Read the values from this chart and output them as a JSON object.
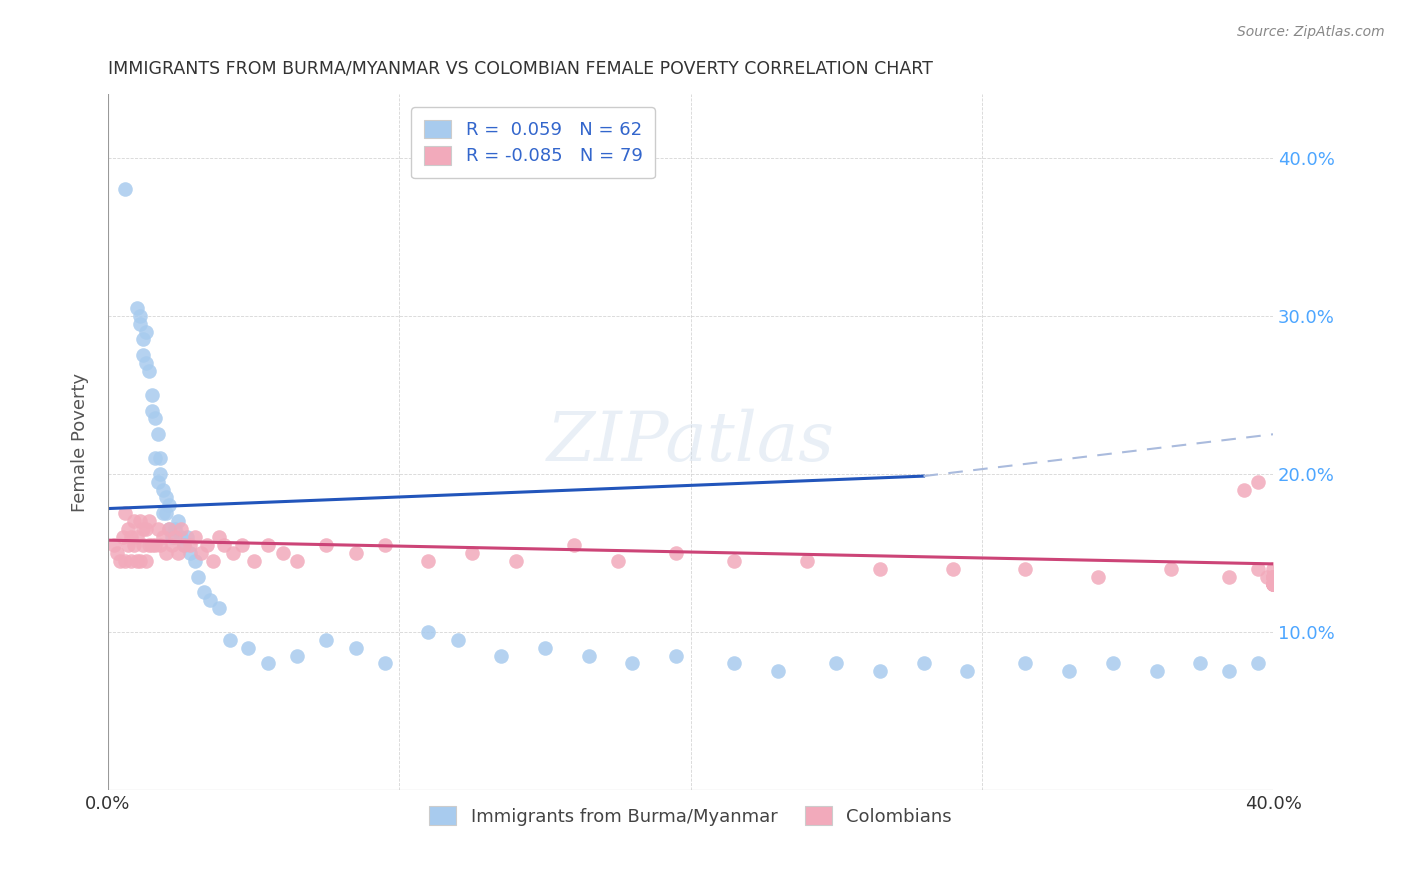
{
  "title": "IMMIGRANTS FROM BURMA/MYANMAR VS COLOMBIAN FEMALE POVERTY CORRELATION CHART",
  "source": "Source: ZipAtlas.com",
  "ylabel": "Female Poverty",
  "color_blue": "#A8CBEE",
  "color_pink": "#F2AABB",
  "trend_blue": "#2255BB",
  "trend_pink": "#CC4477",
  "trend_dashed": "#AABBDD",
  "watermark": "ZIPatlas",
  "xlim": [
    0.0,
    0.4
  ],
  "ylim": [
    0.0,
    0.44
  ],
  "blue_points_x": [
    0.006,
    0.01,
    0.011,
    0.011,
    0.012,
    0.012,
    0.013,
    0.013,
    0.014,
    0.015,
    0.015,
    0.016,
    0.016,
    0.017,
    0.017,
    0.018,
    0.018,
    0.019,
    0.019,
    0.02,
    0.02,
    0.021,
    0.021,
    0.022,
    0.023,
    0.024,
    0.025,
    0.026,
    0.027,
    0.028,
    0.03,
    0.031,
    0.033,
    0.035,
    0.038,
    0.042,
    0.048,
    0.055,
    0.065,
    0.075,
    0.085,
    0.095,
    0.11,
    0.12,
    0.135,
    0.15,
    0.165,
    0.18,
    0.195,
    0.215,
    0.23,
    0.25,
    0.265,
    0.28,
    0.295,
    0.315,
    0.33,
    0.345,
    0.36,
    0.375,
    0.385,
    0.395
  ],
  "blue_points_y": [
    0.38,
    0.305,
    0.3,
    0.295,
    0.285,
    0.275,
    0.29,
    0.27,
    0.265,
    0.25,
    0.24,
    0.235,
    0.21,
    0.225,
    0.195,
    0.21,
    0.2,
    0.19,
    0.175,
    0.185,
    0.175,
    0.165,
    0.18,
    0.16,
    0.165,
    0.17,
    0.16,
    0.155,
    0.16,
    0.15,
    0.145,
    0.135,
    0.125,
    0.12,
    0.115,
    0.095,
    0.09,
    0.08,
    0.085,
    0.095,
    0.09,
    0.08,
    0.1,
    0.095,
    0.085,
    0.09,
    0.085,
    0.08,
    0.085,
    0.08,
    0.075,
    0.08,
    0.075,
    0.08,
    0.075,
    0.08,
    0.075,
    0.08,
    0.075,
    0.08,
    0.075,
    0.08
  ],
  "pink_points_x": [
    0.002,
    0.003,
    0.004,
    0.005,
    0.006,
    0.006,
    0.007,
    0.007,
    0.008,
    0.008,
    0.009,
    0.009,
    0.01,
    0.01,
    0.011,
    0.011,
    0.012,
    0.012,
    0.013,
    0.013,
    0.014,
    0.014,
    0.015,
    0.016,
    0.017,
    0.018,
    0.019,
    0.02,
    0.021,
    0.022,
    0.023,
    0.024,
    0.025,
    0.026,
    0.028,
    0.03,
    0.032,
    0.034,
    0.036,
    0.038,
    0.04,
    0.043,
    0.046,
    0.05,
    0.055,
    0.06,
    0.065,
    0.075,
    0.085,
    0.095,
    0.11,
    0.125,
    0.14,
    0.16,
    0.175,
    0.195,
    0.215,
    0.24,
    0.265,
    0.29,
    0.315,
    0.34,
    0.365,
    0.385,
    0.395,
    0.398,
    0.4,
    0.4,
    0.4,
    0.4,
    0.4,
    0.4,
    0.4,
    0.4,
    0.4,
    0.4,
    0.4,
    0.395,
    0.39
  ],
  "pink_points_y": [
    0.155,
    0.15,
    0.145,
    0.16,
    0.145,
    0.175,
    0.155,
    0.165,
    0.145,
    0.16,
    0.155,
    0.17,
    0.145,
    0.16,
    0.145,
    0.17,
    0.155,
    0.165,
    0.145,
    0.165,
    0.155,
    0.17,
    0.155,
    0.155,
    0.165,
    0.155,
    0.16,
    0.15,
    0.165,
    0.155,
    0.16,
    0.15,
    0.165,
    0.155,
    0.155,
    0.16,
    0.15,
    0.155,
    0.145,
    0.16,
    0.155,
    0.15,
    0.155,
    0.145,
    0.155,
    0.15,
    0.145,
    0.155,
    0.15,
    0.155,
    0.145,
    0.15,
    0.145,
    0.155,
    0.145,
    0.15,
    0.145,
    0.145,
    0.14,
    0.14,
    0.14,
    0.135,
    0.14,
    0.135,
    0.14,
    0.135,
    0.14,
    0.135,
    0.135,
    0.135,
    0.13,
    0.135,
    0.13,
    0.13,
    0.13,
    0.13,
    0.13,
    0.195,
    0.19
  ]
}
